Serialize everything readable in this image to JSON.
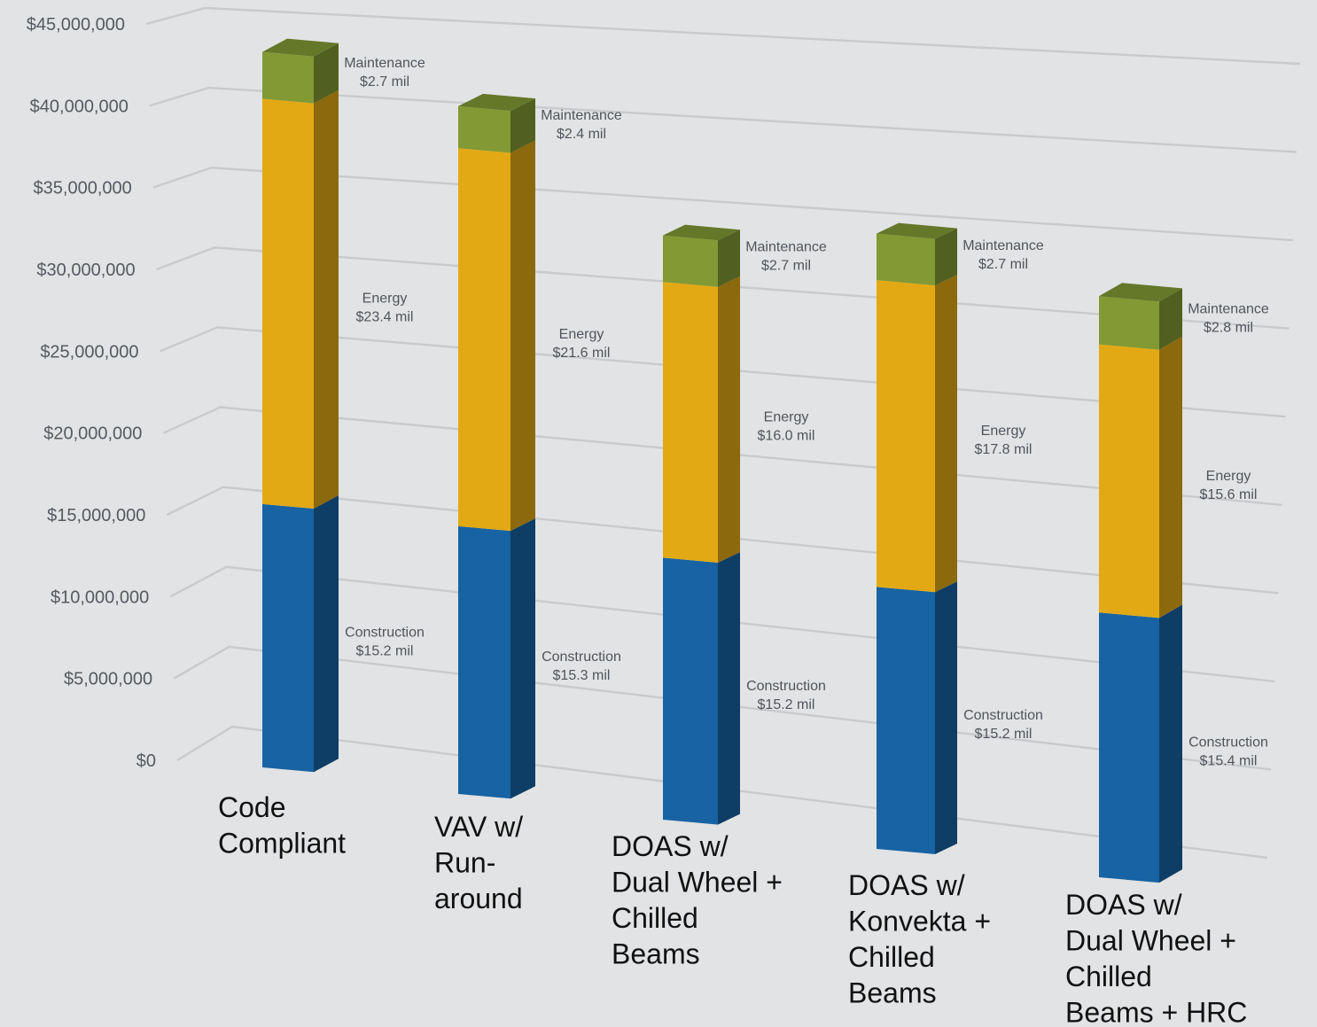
{
  "chart_data": {
    "type": "bar",
    "stacked": true,
    "three_d": true,
    "categories": [
      [
        "Code",
        "Compliant"
      ],
      [
        "VAV w/",
        "Run-",
        "around"
      ],
      [
        "DOAS w/",
        "Dual Wheel +",
        "Chilled",
        "Beams"
      ],
      [
        "DOAS w/",
        "Konvekta +",
        "Chilled",
        "Beams"
      ],
      [
        "DOAS w/",
        "Dual Wheel +",
        "Chilled",
        "Beams + HRC"
      ]
    ],
    "series": [
      {
        "name": "Construction",
        "color": "#1763a3",
        "values": [
          15.2,
          15.3,
          15.2,
          15.2,
          15.4
        ],
        "labels": [
          "Construction\n$15.2 mil",
          "Construction\n$15.3 mil",
          "Construction\n$15.2 mil",
          "Construction\n$15.2 mil",
          "Construction\n$15.4 mil"
        ]
      },
      {
        "name": "Energy",
        "color": "#e2a914",
        "values": [
          23.4,
          21.6,
          16.0,
          17.8,
          15.6
        ],
        "labels": [
          "Energy\n$23.4 mil",
          "Energy\n$21.6 mil",
          "Energy\n$16.0 mil",
          "Energy\n$17.8 mil",
          "Energy\n$15.6 mil"
        ]
      },
      {
        "name": "Maintenance",
        "color": "#829934",
        "values": [
          2.7,
          2.4,
          2.7,
          2.7,
          2.8
        ],
        "labels": [
          "Maintenance\n$2.7 mil",
          "Maintenance\n$2.4 mil",
          "Maintenance\n$2.7 mil",
          "Maintenance\n$2.7 mil",
          "Maintenance\n$2.8 mil"
        ]
      }
    ],
    "value_unit": "millions of dollars",
    "yticks": [
      "$0",
      "$5,000,000",
      "$10,000,000",
      "$15,000,000",
      "$20,000,000",
      "$25,000,000",
      "$30,000,000",
      "$35,000,000",
      "$40,000,000",
      "$45,000,000"
    ],
    "ylim": [
      0,
      45
    ],
    "grid": true,
    "legend": "none",
    "title": "",
    "xlabel": "",
    "ylabel": ""
  }
}
